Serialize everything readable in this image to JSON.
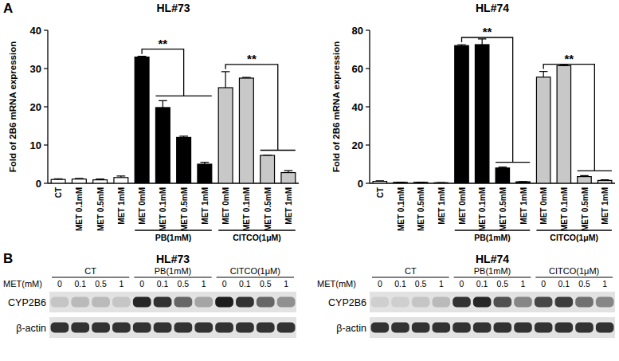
{
  "panel_labels": [
    "A",
    "B"
  ],
  "chart_data": [
    {
      "type": "bar",
      "title": "HL#73",
      "y_label": "Fold of 2B6 mRNA expression",
      "categories": [
        "CT",
        "MET 0.1mM",
        "MET 0.5mM",
        "MET 1mM",
        "MET 0mM",
        "MET 0.1mM",
        "MET 0.5mM",
        "MET 1mM",
        "MET 0mM",
        "MET 0.1mM",
        "MET 0.5mM",
        "MET 1mM"
      ],
      "values": [
        1,
        1.1,
        0.9,
        1.5,
        33,
        19.8,
        12,
        5,
        25,
        27.5,
        7.3,
        2.8
      ],
      "errors": [
        0.2,
        0.2,
        0.2,
        0.4,
        0.2,
        1.8,
        0.3,
        0.5,
        4.2,
        0.2,
        0.1,
        0.5
      ],
      "colors": [
        "#ffffff",
        "#ffffff",
        "#ffffff",
        "#ffffff",
        "#000000",
        "#000000",
        "#000000",
        "#000000",
        "#c8c8c8",
        "#c8c8c8",
        "#c8c8c8",
        "#c8c8c8"
      ],
      "groups": [
        {
          "label": "PB(1mM)",
          "from": 4,
          "to": 7
        },
        {
          "label": "CITCO(1μM)",
          "from": 8,
          "to": 11
        }
      ],
      "annotations": [
        {
          "text": "**",
          "from": 4,
          "to": [
            5,
            7
          ]
        },
        {
          "text": "**",
          "from": 8,
          "to": [
            10,
            11
          ]
        }
      ],
      "ylim": [
        0,
        40
      ],
      "yticks": [
        0,
        10,
        20,
        30,
        40
      ],
      "grid": false
    },
    {
      "type": "bar",
      "title": "HL#74",
      "y_label": "Fold of 2B6 mRNA expression",
      "categories": [
        "CT",
        "MET 0.1mM",
        "MET 0.5mM",
        "MET 1mM",
        "MET 0mM",
        "MET 0.1mM",
        "MET 0.5mM",
        "MET 1mM",
        "MET 0mM",
        "MET 0.1mM",
        "MET 0.5mM",
        "MET 1mM"
      ],
      "values": [
        1,
        0.5,
        0.5,
        0.3,
        72,
        72.5,
        8,
        0.8,
        55.5,
        61.5,
        3.5,
        1.5
      ],
      "errors": [
        0.3,
        0.1,
        0.1,
        0.1,
        0.5,
        3,
        0.5,
        0.1,
        3,
        0.5,
        0.5,
        0.3
      ],
      "colors": [
        "#ffffff",
        "#ffffff",
        "#ffffff",
        "#ffffff",
        "#000000",
        "#000000",
        "#000000",
        "#000000",
        "#c8c8c8",
        "#c8c8c8",
        "#c8c8c8",
        "#c8c8c8"
      ],
      "groups": [
        {
          "label": "PB(1mM)",
          "from": 4,
          "to": 7
        },
        {
          "label": "CITCO(1μM)",
          "from": 8,
          "to": 11
        }
      ],
      "annotations": [
        {
          "text": "**",
          "from": 4,
          "to": [
            6,
            7
          ]
        },
        {
          "text": "**",
          "from": 8,
          "to": [
            10,
            11
          ]
        }
      ],
      "ylim": [
        0,
        80
      ],
      "yticks": [
        0,
        20,
        40,
        60,
        80
      ],
      "grid": false
    }
  ],
  "blots": [
    {
      "title": "HL#73",
      "lane_header": "MET(mM)",
      "lanes": [
        "0",
        "0.1",
        "0.5",
        "1",
        "0",
        "0.1",
        "0.5",
        "1",
        "0",
        "0.1",
        "0.5",
        "1"
      ],
      "groups": [
        {
          "label": "CT",
          "from": 0,
          "to": 3
        },
        {
          "label": "PB(1mM)",
          "from": 4,
          "to": 7
        },
        {
          "label": "CITCO(1μM)",
          "from": 8,
          "to": 11
        }
      ],
      "rows": [
        {
          "name": "CYP2B6",
          "intensity": [
            0.15,
            0.2,
            0.2,
            0.15,
            0.9,
            0.85,
            0.6,
            0.3,
            0.95,
            0.85,
            0.6,
            0.4
          ]
        },
        {
          "name": "β-actin",
          "intensity": [
            0.85,
            0.85,
            0.85,
            0.85,
            0.85,
            0.85,
            0.85,
            0.85,
            0.85,
            0.85,
            0.85,
            0.85
          ]
        }
      ]
    },
    {
      "title": "HL#74",
      "lane_header": "MET(mM)",
      "lanes": [
        "0",
        "0.1",
        "0.5",
        "1",
        "0",
        "0.1",
        "0.5",
        "1",
        "0",
        "0.1",
        "0.5",
        "1"
      ],
      "groups": [
        {
          "label": "CT",
          "from": 0,
          "to": 3
        },
        {
          "label": "PB(1mM)",
          "from": 4,
          "to": 7
        },
        {
          "label": "CITCO(1μM)",
          "from": 8,
          "to": 11
        }
      ],
      "rows": [
        {
          "name": "CYP2B6",
          "intensity": [
            0.1,
            0.1,
            0.15,
            0.2,
            0.85,
            0.9,
            0.7,
            0.45,
            0.75,
            0.8,
            0.55,
            0.45
          ]
        },
        {
          "name": "β-actin",
          "intensity": [
            0.85,
            0.85,
            0.85,
            0.85,
            0.85,
            0.85,
            0.85,
            0.85,
            0.85,
            0.85,
            0.85,
            0.85
          ]
        }
      ]
    }
  ]
}
